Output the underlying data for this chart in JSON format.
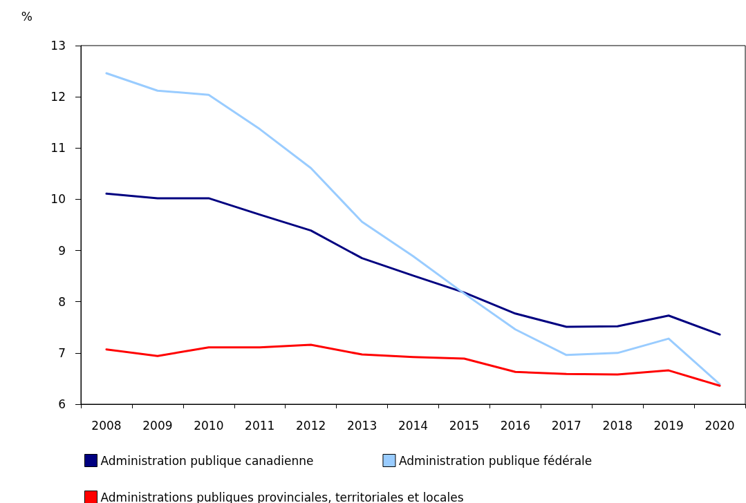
{
  "chart_data": {
    "type": "line",
    "ylabel": "%",
    "categories": [
      "2008",
      "2009",
      "2010",
      "2011",
      "2012",
      "2013",
      "2014",
      "2015",
      "2016",
      "2017",
      "2018",
      "2019",
      "2020"
    ],
    "series": [
      {
        "name": "Administration publique canadienne",
        "color": "#000080",
        "values": [
          10.11,
          10.02,
          10.02,
          9.7,
          9.39,
          8.85,
          8.51,
          8.18,
          7.77,
          7.51,
          7.52,
          7.73,
          7.36
        ]
      },
      {
        "name": "Administration publique fédérale",
        "color": "#99ccff",
        "values": [
          12.46,
          12.12,
          12.04,
          11.37,
          10.61,
          9.56,
          8.89,
          8.16,
          7.46,
          6.96,
          7.0,
          7.28,
          6.39
        ]
      },
      {
        "name": "Administrations publiques provinciales, territoriales et locales",
        "color": "#ff0000",
        "values": [
          7.07,
          6.94,
          7.11,
          7.11,
          7.16,
          6.97,
          6.92,
          6.89,
          6.63,
          6.59,
          6.58,
          6.66,
          6.36
        ]
      }
    ],
    "ylim": [
      6,
      13
    ],
    "yticks": [
      6,
      7,
      8,
      9,
      10,
      11,
      12,
      13
    ],
    "grid": false,
    "legend": "bottom",
    "marker": "none",
    "line_style": "solid"
  }
}
